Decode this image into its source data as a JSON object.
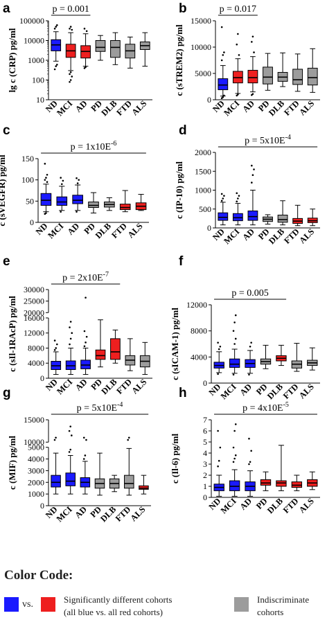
{
  "chart_data": [
    {
      "panel": "a",
      "type": "boxplot",
      "ylabel": "lg c (CRP) pg/ml",
      "yscale": "log",
      "ylim": [
        10,
        100000
      ],
      "yticks": [
        10,
        100,
        1000,
        10000,
        100000
      ],
      "ytick_labels": [
        "10",
        "100",
        "1000",
        "10000",
        "100000"
      ],
      "annotation": "p = 0.001",
      "bracket": [
        "ND",
        "AD"
      ],
      "categories": [
        "ND",
        "MCI",
        "AD",
        "PD",
        "DLB",
        "FTD",
        "ALS"
      ],
      "colors": [
        "blue",
        "red",
        "red",
        "gray",
        "gray",
        "gray",
        "gray"
      ],
      "boxes": [
        {
          "min": 900,
          "q1": 3000,
          "median": 6000,
          "q3": 11000,
          "max": 28000,
          "outliers": [
            350,
            500,
            600,
            40000,
            50000,
            60000
          ]
        },
        {
          "min": 300,
          "q1": 1400,
          "median": 3000,
          "q3": 6500,
          "max": 25000,
          "outliers": [
            80,
            100,
            150,
            200,
            250,
            35000,
            40000,
            50000
          ]
        },
        {
          "min": 500,
          "q1": 1300,
          "median": 2800,
          "q3": 5500,
          "max": 22000,
          "outliers": [
            400,
            450,
            30000,
            40000
          ]
        },
        {
          "min": 1000,
          "q1": 2800,
          "median": 4500,
          "q3": 10000,
          "max": 18000,
          "outliers": []
        },
        {
          "min": 600,
          "q1": 1400,
          "median": 4500,
          "q3": 10000,
          "max": 25000,
          "outliers": []
        },
        {
          "min": 400,
          "q1": 1300,
          "median": 3000,
          "q3": 6500,
          "max": 15000,
          "outliers": []
        },
        {
          "min": 500,
          "q1": 3500,
          "median": 5500,
          "q3": 8500,
          "max": 25000,
          "outliers": []
        }
      ]
    },
    {
      "panel": "b",
      "type": "boxplot",
      "ylabel": "c (sTREM2) pg/ml",
      "yscale": "linear",
      "ylim": [
        0,
        15000
      ],
      "yticks": [
        0,
        5000,
        10000,
        15000
      ],
      "ytick_labels": [
        "0",
        "5000",
        "10000",
        "15000"
      ],
      "annotation": "p = 0.017",
      "bracket": [
        "ND",
        "AD"
      ],
      "categories": [
        "ND",
        "MCI",
        "AD",
        "PD",
        "DLB",
        "FTD",
        "ALS"
      ],
      "colors": [
        "blue",
        "red",
        "red",
        "gray",
        "gray",
        "gray",
        "gray"
      ],
      "boxes": [
        {
          "min": 700,
          "q1": 1900,
          "median": 2800,
          "q3": 4000,
          "max": 6500,
          "outliers": [
            300,
            500,
            800,
            7500,
            8500,
            9000,
            13800
          ]
        },
        {
          "min": 1200,
          "q1": 3200,
          "median": 4200,
          "q3": 5400,
          "max": 7800,
          "outliers": [
            800,
            1000,
            8500,
            10500,
            12500
          ]
        },
        {
          "min": 1500,
          "q1": 3200,
          "median": 4200,
          "q3": 5600,
          "max": 8200,
          "outliers": [
            900,
            1100,
            9000,
            11000,
            12000
          ]
        },
        {
          "min": 1800,
          "q1": 3000,
          "median": 4300,
          "q3": 6200,
          "max": 8800,
          "outliers": []
        },
        {
          "min": 2500,
          "q1": 3500,
          "median": 4300,
          "q3": 5200,
          "max": 8900,
          "outliers": []
        },
        {
          "min": 1600,
          "q1": 2900,
          "median": 3800,
          "q3": 5800,
          "max": 8700,
          "outliers": []
        },
        {
          "min": 1400,
          "q1": 2800,
          "median": 4200,
          "q3": 6000,
          "max": 9700,
          "outliers": []
        }
      ]
    },
    {
      "panel": "c",
      "type": "boxplot",
      "ylabel": "c (sVEGFR) pg/ml",
      "yscale": "linear",
      "ylim": [
        0,
        150
      ],
      "yticks": [
        0,
        50,
        100,
        150
      ],
      "ytick_labels": [
        "0",
        "50",
        "100",
        "150"
      ],
      "annotation": "p = 1x10E",
      "annotation_sup": "-6",
      "bracket": [
        "ND",
        "ALS"
      ],
      "categories": [
        "ND",
        "MCI",
        "AD",
        "PD",
        "DLB",
        "FTD",
        "ALS"
      ],
      "colors": [
        "blue",
        "blue",
        "blue",
        "gray",
        "gray",
        "red",
        "red"
      ],
      "boxes": [
        {
          "min": 25,
          "q1": 40,
          "median": 52,
          "q3": 68,
          "max": 90,
          "outliers": [
            20,
            22,
            95,
            100,
            105,
            112,
            138
          ]
        },
        {
          "min": 28,
          "q1": 40,
          "median": 48,
          "q3": 60,
          "max": 85,
          "outliers": [
            25,
            90,
            98,
            105
          ]
        },
        {
          "min": 28,
          "q1": 44,
          "median": 52,
          "q3": 64,
          "max": 88,
          "outliers": [
            25,
            92,
            100,
            104
          ]
        },
        {
          "min": 22,
          "q1": 35,
          "median": 40,
          "q3": 48,
          "max": 70,
          "outliers": []
        },
        {
          "min": 28,
          "q1": 36,
          "median": 42,
          "q3": 48,
          "max": 58,
          "outliers": []
        },
        {
          "min": 25,
          "q1": 30,
          "median": 35,
          "q3": 43,
          "max": 75,
          "outliers": []
        },
        {
          "min": 28,
          "q1": 30,
          "median": 38,
          "q3": 46,
          "max": 66,
          "outliers": []
        }
      ]
    },
    {
      "panel": "d",
      "type": "boxplot",
      "ylabel": "c (IP-10) pg/ml",
      "yscale": "linear",
      "ylim": [
        0,
        2000
      ],
      "yticks": [
        0,
        500,
        1000,
        1500,
        2000
      ],
      "ytick_labels": [
        "0",
        "500",
        "1000",
        "1500",
        "2000"
      ],
      "annotation": "p = 5x10E",
      "annotation_sup": "-4",
      "bracket": [
        "ND",
        "ALS"
      ],
      "categories": [
        "ND",
        "MCI",
        "AD",
        "PD",
        "DLB",
        "FTD",
        "ALS"
      ],
      "colors": [
        "blue",
        "blue",
        "blue",
        "gray",
        "gray",
        "red",
        "red"
      ],
      "boxes": [
        {
          "min": 80,
          "q1": 200,
          "median": 280,
          "q3": 400,
          "max": 680,
          "outliers": [
            720,
            780,
            850,
            900
          ]
        },
        {
          "min": 80,
          "q1": 190,
          "median": 270,
          "q3": 380,
          "max": 650,
          "outliers": [
            700,
            780,
            850,
            920
          ]
        },
        {
          "min": 80,
          "q1": 200,
          "median": 300,
          "q3": 450,
          "max": 1000,
          "outliers": [
            1200,
            1400,
            1550,
            1650
          ]
        },
        {
          "min": 100,
          "q1": 170,
          "median": 230,
          "q3": 290,
          "max": 350,
          "outliers": []
        },
        {
          "min": 80,
          "q1": 150,
          "median": 220,
          "q3": 340,
          "max": 720,
          "outliers": []
        },
        {
          "min": 60,
          "q1": 120,
          "median": 180,
          "q3": 250,
          "max": 600,
          "outliers": []
        },
        {
          "min": 60,
          "q1": 140,
          "median": 190,
          "q3": 260,
          "max": 500,
          "outliers": []
        }
      ]
    },
    {
      "panel": "e",
      "type": "boxplot",
      "ylabel": "c (sIl-1RAcP) pg/ml",
      "yscale": "linear-broken",
      "break": [
        16000,
        20000
      ],
      "ylim": [
        0,
        30000
      ],
      "yticks": [
        0,
        4000,
        8000,
        12000,
        16000,
        20000,
        25000,
        30000
      ],
      "ytick_labels": [
        "0",
        "4000",
        "8000",
        "12000",
        "16000",
        "20000",
        "25000",
        "30000"
      ],
      "annotation": "p = 2x10E",
      "annotation_sup": "-7",
      "bracket": [
        "ND",
        "DLB"
      ],
      "categories": [
        "ND",
        "MCI",
        "AD",
        "PD",
        "DLB",
        "FTD",
        "ALS"
      ],
      "colors": [
        "blue",
        "blue",
        "blue",
        "red",
        "red",
        "gray",
        "gray"
      ],
      "boxes": [
        {
          "min": 1000,
          "q1": 2300,
          "median": 3300,
          "q3": 4500,
          "max": 7000,
          "outliers": [
            7500,
            8000,
            9000,
            10000
          ]
        },
        {
          "min": 1000,
          "q1": 2300,
          "median": 3300,
          "q3": 4600,
          "max": 8000,
          "outliers": [
            9000,
            10500,
            12000,
            13500,
            15000
          ]
        },
        {
          "min": 1000,
          "q1": 2500,
          "median": 3500,
          "q3": 4800,
          "max": 8000,
          "outliers": [
            8500,
            9500,
            11000,
            12500,
            26500
          ]
        },
        {
          "min": 3000,
          "q1": 5000,
          "median": 6000,
          "q3": 7500,
          "max": 15500,
          "outliers": []
        },
        {
          "min": 4000,
          "q1": 5000,
          "median": 7000,
          "q3": 10500,
          "max": 12800,
          "outliers": []
        },
        {
          "min": 2000,
          "q1": 3500,
          "median": 4800,
          "q3": 6000,
          "max": 10500,
          "outliers": []
        },
        {
          "min": 1000,
          "q1": 3000,
          "median": 4500,
          "q3": 6000,
          "max": 9500,
          "outliers": []
        }
      ]
    },
    {
      "panel": "f",
      "type": "boxplot",
      "ylabel": "c (sICAM-1) pg/ml",
      "yscale": "linear",
      "ylim": [
        0,
        12000
      ],
      "yticks": [
        0,
        4000,
        8000,
        12000
      ],
      "ytick_labels": [
        "0",
        "4000",
        "8000",
        "12000"
      ],
      "annotation": "p = 0.005",
      "bracket": [
        "ND",
        "DLB"
      ],
      "categories": [
        "ND",
        "MCI",
        "AD",
        "PD",
        "DLB",
        "FTD",
        "ALS"
      ],
      "colors": [
        "blue",
        "blue",
        "blue",
        "gray",
        "red",
        "gray",
        "gray"
      ],
      "boxes": [
        {
          "min": 1600,
          "q1": 2300,
          "median": 2700,
          "q3": 3200,
          "max": 4800,
          "outliers": [
            1400,
            5200,
            5600,
            6200
          ]
        },
        {
          "min": 1500,
          "q1": 2400,
          "median": 2900,
          "q3": 3700,
          "max": 5200,
          "outliers": [
            1300,
            6000,
            6800,
            8000,
            9300,
            10400
          ]
        },
        {
          "min": 1500,
          "q1": 2400,
          "median": 3000,
          "q3": 3600,
          "max": 5000,
          "outliers": [
            1300,
            5600,
            6200
          ]
        },
        {
          "min": 2200,
          "q1": 2900,
          "median": 3300,
          "q3": 3700,
          "max": 5800,
          "outliers": []
        },
        {
          "min": 2700,
          "q1": 3400,
          "median": 3800,
          "q3": 4200,
          "max": 5800,
          "outliers": []
        },
        {
          "min": 1800,
          "q1": 2300,
          "median": 2900,
          "q3": 3400,
          "max": 6100,
          "outliers": []
        },
        {
          "min": 2000,
          "q1": 2700,
          "median": 3100,
          "q3": 3500,
          "max": 5400,
          "outliers": []
        }
      ]
    },
    {
      "panel": "g",
      "type": "boxplot",
      "ylabel": "c (MIF) pg/ml",
      "yscale": "linear-broken",
      "break": [
        5000,
        10000
      ],
      "ylim": [
        0,
        15000
      ],
      "yticks": [
        0,
        1000,
        2000,
        3000,
        4000,
        5000,
        10000,
        15000
      ],
      "ytick_labels": [
        "0",
        "1000",
        "2000",
        "3000",
        "4000",
        "5000",
        "10000",
        "15000"
      ],
      "annotation": "p = 5x10E",
      "annotation_sup": "-4",
      "bracket": [
        "ND",
        "ALS"
      ],
      "categories": [
        "ND",
        "MCI",
        "AD",
        "PD",
        "DLB",
        "FTD",
        "ALS"
      ],
      "colors": [
        "blue",
        "blue",
        "blue",
        "gray",
        "gray",
        "gray",
        "red"
      ],
      "boxes": [
        {
          "min": 1000,
          "q1": 1600,
          "median": 2000,
          "q3": 2600,
          "max": 4500,
          "outliers": [
            10500,
            11000
          ]
        },
        {
          "min": 1000,
          "q1": 1700,
          "median": 2100,
          "q3": 2800,
          "max": 4300,
          "outliers": [
            4600,
            4800,
            11500,
            12500,
            13500
          ]
        },
        {
          "min": 1000,
          "q1": 1600,
          "median": 2000,
          "q3": 2400,
          "max": 3800,
          "outliers": [
            4000,
            4300,
            10500,
            11000
          ]
        },
        {
          "min": 900,
          "q1": 1500,
          "median": 1900,
          "q3": 2300,
          "max": 4500,
          "outliers": []
        },
        {
          "min": 1200,
          "q1": 1500,
          "median": 1900,
          "q3": 2300,
          "max": 2600,
          "outliers": []
        },
        {
          "min": 900,
          "q1": 1500,
          "median": 1900,
          "q3": 2600,
          "max": 4900,
          "outliers": [
            10500,
            11000
          ]
        },
        {
          "min": 1000,
          "q1": 1400,
          "median": 1500,
          "q3": 1700,
          "max": 2600,
          "outliers": []
        }
      ]
    },
    {
      "panel": "h",
      "type": "boxplot",
      "ylabel": "c (Il-6) pg/ml",
      "yscale": "linear",
      "ylim": [
        0,
        7
      ],
      "yticks": [
        0,
        1,
        2,
        3,
        4,
        5,
        6,
        7
      ],
      "ytick_labels": [
        "0",
        "1",
        "2",
        "3",
        "4",
        "5",
        "6",
        "7"
      ],
      "annotation": "p = 4x10E",
      "annotation_sup": "-5",
      "bracket": [
        "ND",
        "ALS"
      ],
      "categories": [
        "ND",
        "MCI",
        "AD",
        "PD",
        "DLB",
        "FTD",
        "ALS"
      ],
      "colors": [
        "blue",
        "blue",
        "blue",
        "red",
        "red",
        "red",
        "red"
      ],
      "boxes": [
        {
          "min": 0.1,
          "q1": 0.6,
          "median": 0.9,
          "q3": 1.2,
          "max": 2.0,
          "outliers": [
            2.8,
            3.3,
            4.5,
            6.0
          ]
        },
        {
          "min": 0.1,
          "q1": 0.6,
          "median": 1.0,
          "q3": 1.5,
          "max": 2.5,
          "outliers": [
            3.2,
            3.5,
            3.8,
            4.5,
            6.0,
            6.6
          ]
        },
        {
          "min": 0.1,
          "q1": 0.6,
          "median": 1.0,
          "q3": 1.4,
          "max": 2.4,
          "outliers": [
            3.0,
            3.2,
            4.2,
            5.3
          ]
        },
        {
          "min": 0.6,
          "q1": 1.1,
          "median": 1.3,
          "q3": 1.6,
          "max": 2.3,
          "outliers": []
        },
        {
          "min": 0.6,
          "q1": 1.0,
          "median": 1.3,
          "q3": 1.5,
          "max": 4.7,
          "outliers": []
        },
        {
          "min": 0.6,
          "q1": 0.9,
          "median": 1.1,
          "q3": 1.4,
          "max": 2.0,
          "outliers": []
        },
        {
          "min": 0.7,
          "q1": 1.0,
          "median": 1.3,
          "q3": 1.6,
          "max": 2.3,
          "outliers": []
        }
      ]
    }
  ],
  "colors": {
    "blue": "#1a1aff",
    "red": "#ee1f1f",
    "gray": "#9c9c9c"
  },
  "legend": {
    "title": "Color Code:",
    "vs": "vs.",
    "significant_line1": "Significantly different cohorts",
    "significant_line2": "(all blue vs. all red cohorts)",
    "indiscriminate_line1": "Indiscriminate",
    "indiscriminate_line2": "cohorts"
  }
}
